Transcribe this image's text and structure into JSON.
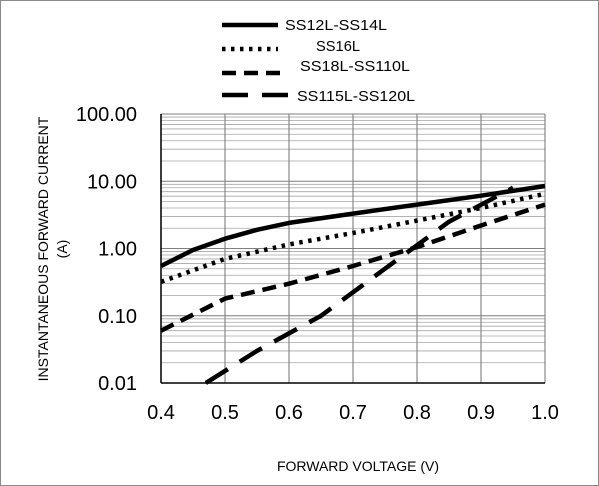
{
  "chart_data": {
    "type": "line",
    "title": "",
    "xlabel": "FORWARD VOLTAGE (V)",
    "ylabel_line1": "INSTANTANEOUS FORWARD CURRENT",
    "ylabel_line2": "(A)",
    "y_scale": "log",
    "xlim": [
      0.4,
      1.0
    ],
    "ylim": [
      0.01,
      100
    ],
    "x_ticks": [
      "0.4",
      "0.5",
      "0.6",
      "0.7",
      "0.8",
      "0.9",
      "1.0"
    ],
    "x_tick_values": [
      0.4,
      0.5,
      0.6,
      0.7,
      0.8,
      0.9,
      1.0
    ],
    "y_ticks": [
      "0.01",
      "0.10",
      "1.00",
      "10.00",
      "100.00"
    ],
    "y_tick_values": [
      0.01,
      0.1,
      1,
      10,
      100
    ],
    "grid": true,
    "legend_position": "top",
    "series": [
      {
        "name": "SS12L-SS14L",
        "style": "solid",
        "x": [
          0.4,
          0.45,
          0.5,
          0.55,
          0.6,
          0.7,
          0.8,
          0.9,
          1.0
        ],
        "y": [
          0.55,
          0.95,
          1.4,
          1.9,
          2.4,
          3.3,
          4.5,
          6.1,
          8.5
        ]
      },
      {
        "name": "SS16L",
        "style": "dotted",
        "x": [
          0.4,
          0.5,
          0.6,
          0.7,
          0.8,
          0.9,
          1.0
        ],
        "y": [
          0.32,
          0.7,
          1.15,
          1.7,
          2.6,
          4.0,
          6.5
        ]
      },
      {
        "name": "SS18L-SS110L",
        "style": "dashed",
        "x": [
          0.4,
          0.5,
          0.6,
          0.7,
          0.8,
          0.9,
          1.0
        ],
        "y": [
          0.06,
          0.18,
          0.3,
          0.55,
          1.05,
          2.2,
          4.5
        ]
      },
      {
        "name": "SS115L-SS120L",
        "style": "long-dashed",
        "x": [
          0.47,
          0.55,
          0.65,
          0.75,
          0.85,
          0.95
        ],
        "y": [
          0.01,
          0.03,
          0.1,
          0.5,
          2.5,
          8.0
        ]
      }
    ]
  }
}
